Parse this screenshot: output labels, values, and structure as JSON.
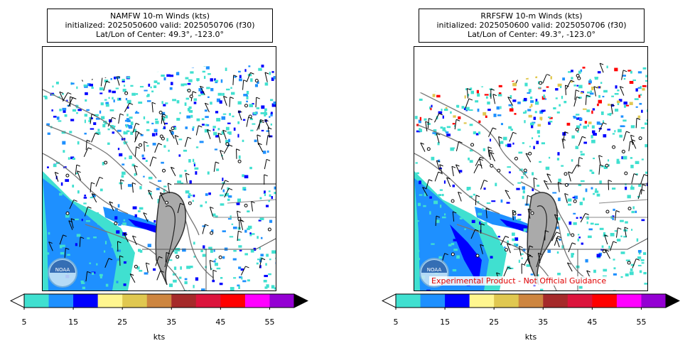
{
  "colorbar": {
    "colors": [
      "#40e0d0",
      "#1e90ff",
      "#0000ff",
      "#fff68f",
      "#e0c850",
      "#cd853f",
      "#a52a2a",
      "#dc143c",
      "#ff0000",
      "#ff00ff",
      "#9400d3"
    ],
    "ticks": [
      "5",
      "15",
      "25",
      "35",
      "45",
      "55"
    ],
    "unit": "kts"
  },
  "panels": [
    {
      "id": "left",
      "title_line1": "NAMFW 10-m Winds (kts)",
      "title_line2": "initialized: 2025050600 valid: 2025050706 (f30)",
      "title_line3": "Lat/Lon of Center: 49.3°, -123.0°",
      "logo_text": "NOAA",
      "disclaimer": ""
    },
    {
      "id": "right",
      "title_line1": "RRFSFW 10-m Winds (kts)",
      "title_line2": "initialized: 2025050600 valid: 2025050706 (f30)",
      "title_line3": "Lat/Lon of Center: 49.3°, -123.0°",
      "logo_text": "NOAA",
      "disclaimer": "Experimental Product - Not Official Guidance"
    }
  ]
}
